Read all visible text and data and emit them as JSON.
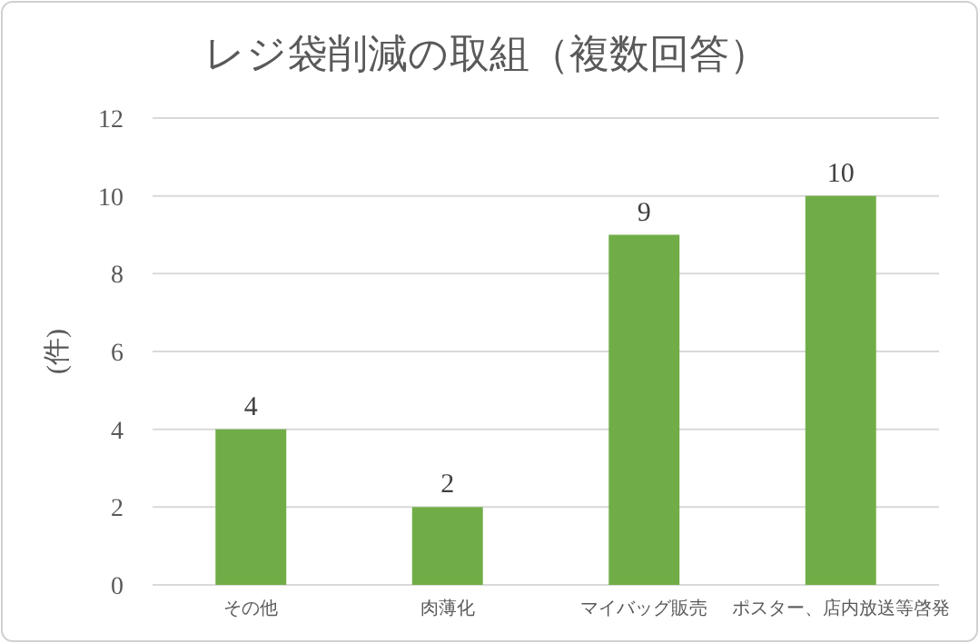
{
  "chart_data": {
    "type": "bar",
    "title": "レジ袋削減の取組（複数回答）",
    "ylabel": "(件)",
    "categories": [
      "その他",
      "肉薄化",
      "マイバッグ販売",
      "ポスター、店内放送等啓発"
    ],
    "values": [
      4,
      2,
      9,
      10
    ],
    "color": "#70ad47",
    "ylim": [
      0,
      12
    ],
    "yticks": [
      0,
      2,
      4,
      6,
      8,
      10,
      12
    ],
    "grid": "y",
    "data_labels": true
  }
}
